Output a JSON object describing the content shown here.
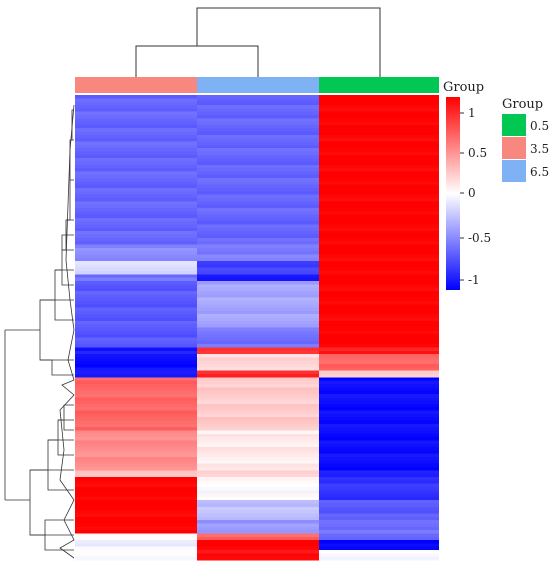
{
  "chart_data": {
    "type": "heatmap",
    "columns": [
      "3.5",
      "6.5",
      "0.5"
    ],
    "column_group_colors": [
      "#F8877F",
      "#7FB2F5",
      "#00C853"
    ],
    "top_annotation_label": "Group",
    "colorbar": {
      "range": [
        -1,
        1
      ],
      "ticks": [
        "1",
        "0.5",
        "0",
        "-0.5",
        "-1"
      ],
      "low_color": "#0000FF",
      "mid_color": "#FFFFFF",
      "high_color": "#FF0000"
    },
    "legend": {
      "title": "Group",
      "entries": [
        {
          "label": "0.5",
          "color": "#00C853"
        },
        {
          "label": "3.5",
          "color": "#F8877F"
        },
        {
          "label": "6.5",
          "color": "#7FB2F5"
        }
      ],
      "position": "right"
    },
    "row_blocks": [
      {
        "rows": 45,
        "values": [
          -0.6,
          -0.6,
          1.0
        ]
      },
      {
        "rows": 5,
        "values": [
          -0.45,
          -0.5,
          1.0
        ]
      },
      {
        "rows": 4,
        "values": [
          -0.15,
          -0.75,
          1.0
        ]
      },
      {
        "rows": 2,
        "values": [
          -0.55,
          -0.9,
          1.0
        ]
      },
      {
        "rows": 14,
        "values": [
          -0.65,
          -0.35,
          1.0
        ]
      },
      {
        "rows": 6,
        "values": [
          -0.65,
          -0.55,
          1.0
        ]
      },
      {
        "rows": 2,
        "values": [
          -0.9,
          0.8,
          0.9
        ]
      },
      {
        "rows": 5,
        "values": [
          -0.95,
          0.15,
          0.6
        ]
      },
      {
        "rows": 2,
        "values": [
          -0.9,
          0.85,
          0.2
        ]
      },
      {
        "rows": 16,
        "values": [
          0.6,
          0.2,
          -0.95
        ]
      },
      {
        "rows": 12,
        "values": [
          0.45,
          0.08,
          -0.95
        ]
      },
      {
        "rows": 2,
        "values": [
          0.2,
          0.2,
          -0.9
        ]
      },
      {
        "rows": 7,
        "values": [
          1.0,
          0.0,
          -0.8
        ]
      },
      {
        "rows": 6,
        "values": [
          1.0,
          -0.25,
          -0.65
        ]
      },
      {
        "rows": 4,
        "values": [
          1.0,
          -0.4,
          -0.55
        ]
      },
      {
        "rows": 2,
        "values": [
          0.0,
          0.6,
          -0.6
        ]
      },
      {
        "rows": 3,
        "values": [
          -0.05,
          1.0,
          -1.0
        ]
      },
      {
        "rows": 3,
        "values": [
          0.0,
          0.95,
          0.0
        ]
      }
    ]
  }
}
